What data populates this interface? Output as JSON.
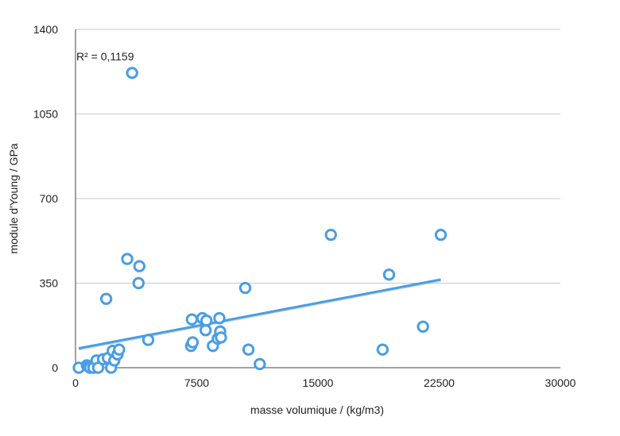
{
  "chart_data": {
    "type": "scatter",
    "title": "",
    "xlabel": "masse volumique / (kg/m3)",
    "ylabel": "module d'Young / GPa",
    "xlim": [
      0,
      30000
    ],
    "ylim": [
      0,
      1400
    ],
    "xticks": [
      0,
      7500,
      15000,
      22500,
      30000
    ],
    "yticks": [
      0,
      350,
      700,
      1050,
      1400
    ],
    "x_tick_labels": [
      "0",
      "7500",
      "15000",
      "22500",
      "30000"
    ],
    "y_tick_labels": [
      "0",
      "350",
      "700",
      "1050",
      "1400"
    ],
    "grid": "horizontal",
    "annotation": "R² = 0,1159",
    "series": [
      {
        "marker": "open-circle",
        "color": "#4a9de6",
        "points": [
          {
            "x": 200,
            "y": 0
          },
          {
            "x": 700,
            "y": 10
          },
          {
            "x": 800,
            "y": 5
          },
          {
            "x": 900,
            "y": 0
          },
          {
            "x": 1100,
            "y": 0
          },
          {
            "x": 1300,
            "y": 30
          },
          {
            "x": 1400,
            "y": 0
          },
          {
            "x": 1700,
            "y": 35
          },
          {
            "x": 1900,
            "y": 285
          },
          {
            "x": 2000,
            "y": 40
          },
          {
            "x": 2200,
            "y": 0
          },
          {
            "x": 2300,
            "y": 70
          },
          {
            "x": 2400,
            "y": 30
          },
          {
            "x": 2600,
            "y": 55
          },
          {
            "x": 2700,
            "y": 75
          },
          {
            "x": 3200,
            "y": 450
          },
          {
            "x": 3500,
            "y": 1220
          },
          {
            "x": 3900,
            "y": 350
          },
          {
            "x": 3950,
            "y": 420
          },
          {
            "x": 4500,
            "y": 115
          },
          {
            "x": 7150,
            "y": 90
          },
          {
            "x": 7200,
            "y": 200
          },
          {
            "x": 7250,
            "y": 105
          },
          {
            "x": 7850,
            "y": 205
          },
          {
            "x": 8050,
            "y": 155
          },
          {
            "x": 8100,
            "y": 195
          },
          {
            "x": 8500,
            "y": 90
          },
          {
            "x": 8800,
            "y": 120
          },
          {
            "x": 8900,
            "y": 205
          },
          {
            "x": 8950,
            "y": 150
          },
          {
            "x": 9000,
            "y": 125
          },
          {
            "x": 10500,
            "y": 330
          },
          {
            "x": 10700,
            "y": 75
          },
          {
            "x": 11400,
            "y": 15
          },
          {
            "x": 15800,
            "y": 550
          },
          {
            "x": 19000,
            "y": 75
          },
          {
            "x": 19400,
            "y": 385
          },
          {
            "x": 21500,
            "y": 170
          },
          {
            "x": 22600,
            "y": 550
          }
        ]
      }
    ],
    "trendline": {
      "type": "linear",
      "color": "#4a9de6",
      "x": [
        200,
        22600
      ],
      "y": [
        80,
        365
      ]
    }
  }
}
